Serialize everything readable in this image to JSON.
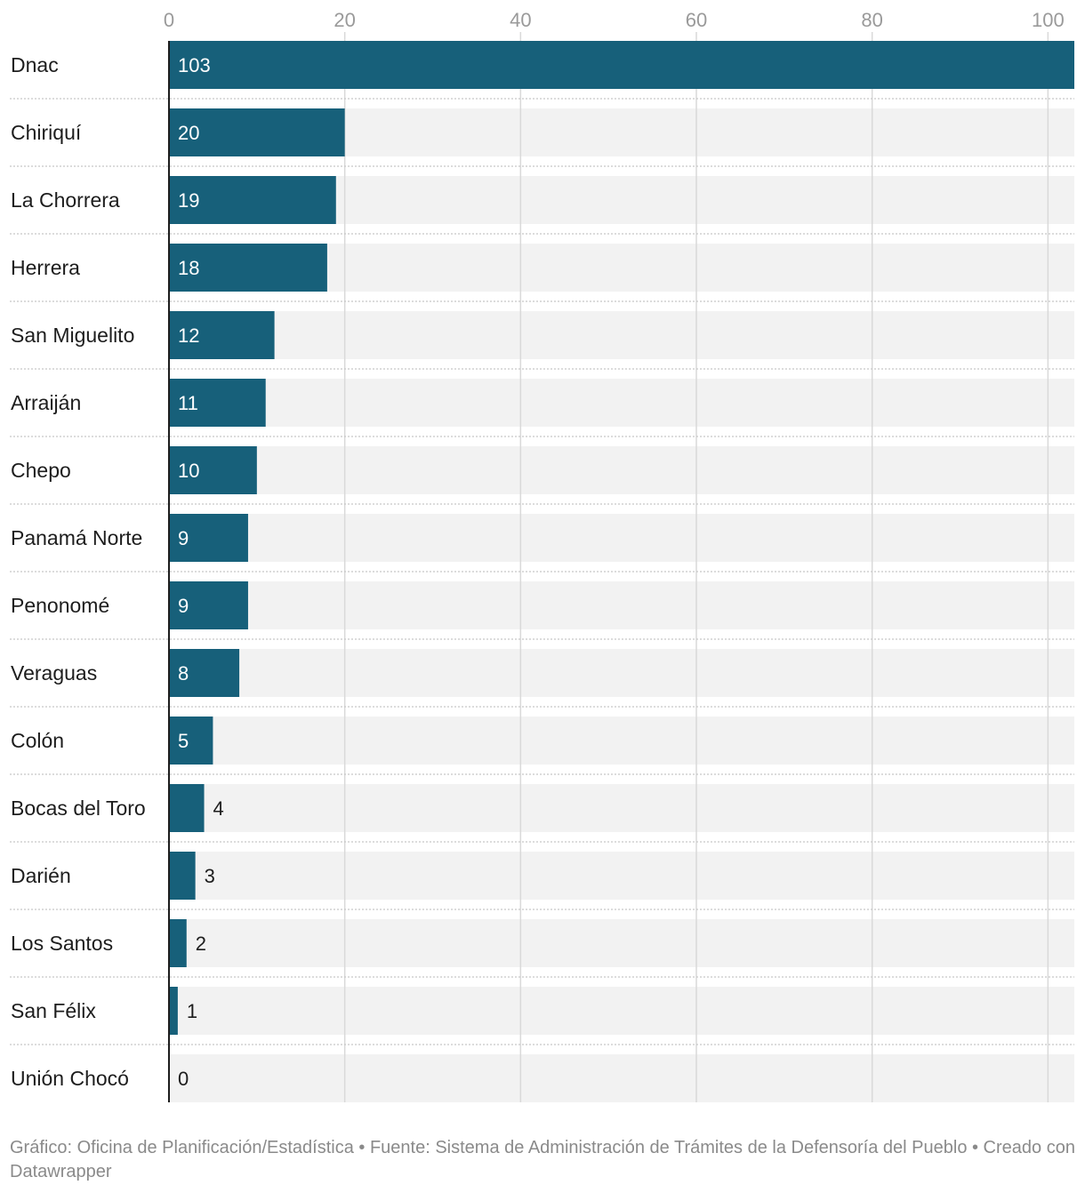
{
  "chart_data": {
    "type": "bar",
    "orientation": "horizontal",
    "categories": [
      "Dnac",
      "Chiriquí",
      "La Chorrera",
      "Herrera",
      "San Miguelito",
      "Arraiján",
      "Chepo",
      "Panamá Norte",
      "Penonomé",
      "Veraguas",
      "Colón",
      "Bocas del Toro",
      "Darién",
      "Los Santos",
      "San Félix",
      "Unión Chocó"
    ],
    "values": [
      103,
      20,
      19,
      18,
      12,
      11,
      10,
      9,
      9,
      8,
      5,
      4,
      3,
      2,
      1,
      0
    ],
    "xlim": [
      0,
      103
    ],
    "ticks": [
      0,
      20,
      40,
      60,
      80,
      100
    ],
    "grid": true,
    "bar_color": "#17607a",
    "track_color": "#f2f2f2",
    "title": "",
    "xlabel": "",
    "ylabel": ""
  },
  "footer": {
    "text": "Gráfico: Oficina de Planificación/Estadística • Fuente: Sistema de Administración de Trámites de la Defensoría del Pueblo • Creado con Datawrapper"
  }
}
